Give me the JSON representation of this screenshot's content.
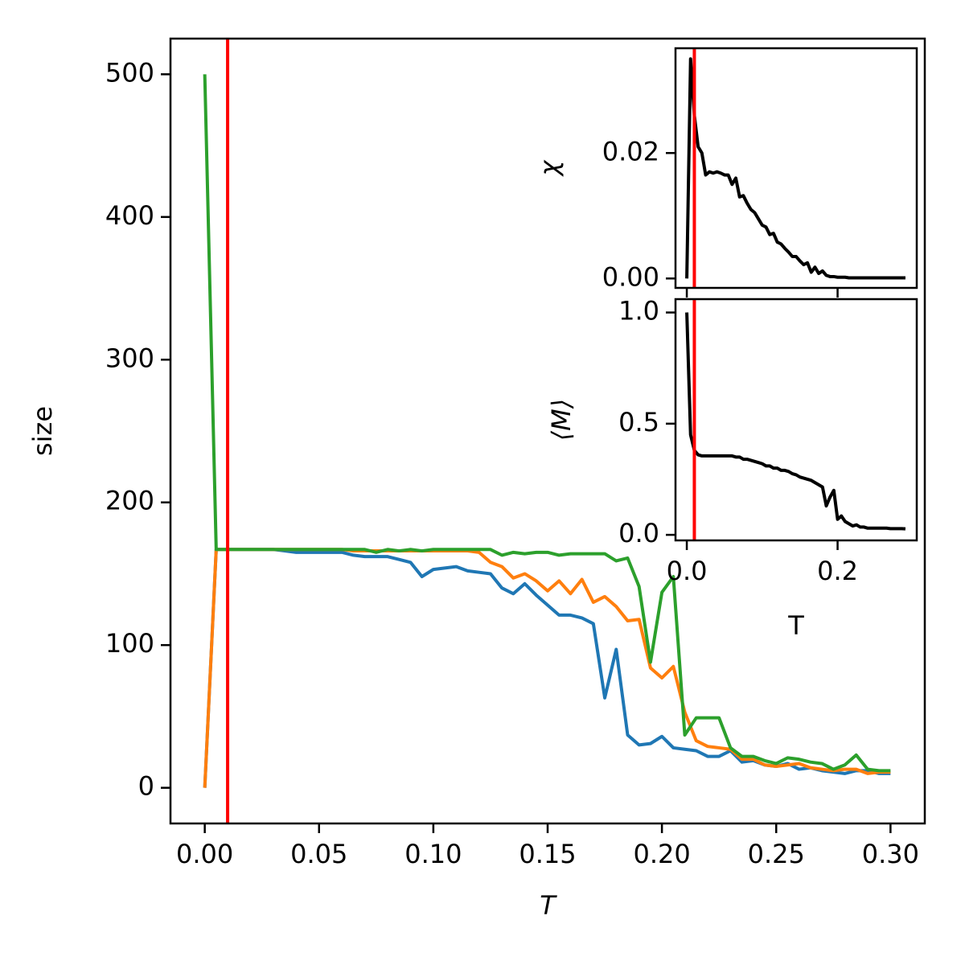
{
  "chart_data": [
    {
      "type": "line",
      "xlabel": "T",
      "ylabel": "size",
      "x": [
        0,
        0.005,
        0.01,
        0.015,
        0.02,
        0.025,
        0.03,
        0.035,
        0.04,
        0.045,
        0.05,
        0.055,
        0.06,
        0.065,
        0.07,
        0.075,
        0.08,
        0.085,
        0.09,
        0.095,
        0.1,
        0.105,
        0.11,
        0.115,
        0.12,
        0.125,
        0.13,
        0.135,
        0.14,
        0.145,
        0.15,
        0.155,
        0.16,
        0.165,
        0.17,
        0.175,
        0.18,
        0.185,
        0.19,
        0.195,
        0.2,
        0.205,
        0.21,
        0.215,
        0.22,
        0.225,
        0.23,
        0.235,
        0.24,
        0.245,
        0.25,
        0.255,
        0.26,
        0.265,
        0.27,
        0.275,
        0.28,
        0.285,
        0.29,
        0.295,
        0.3
      ],
      "series": [
        {
          "color": "#1f77b4",
          "values": [
            0,
            167,
            167,
            167,
            167,
            167,
            167,
            166,
            165,
            165,
            165,
            165,
            165,
            163,
            162,
            162,
            162,
            160,
            158,
            148,
            153,
            154,
            155,
            152,
            151,
            150,
            140,
            136,
            143,
            135,
            128,
            121,
            121,
            119,
            115,
            63,
            97,
            37,
            30,
            31,
            36,
            28,
            27,
            26,
            22,
            22,
            26,
            18,
            19,
            16,
            15,
            17,
            13,
            14,
            12,
            11,
            10,
            12,
            12,
            10,
            10
          ]
        },
        {
          "color": "#ff7f0e",
          "values": [
            0,
            167,
            167,
            167,
            167,
            167,
            167,
            167,
            167,
            167,
            167,
            167,
            167,
            166,
            166,
            166,
            166,
            166,
            166,
            166,
            166,
            166,
            166,
            166,
            165,
            158,
            155,
            147,
            150,
            145,
            138,
            145,
            136,
            146,
            130,
            134,
            127,
            117,
            118,
            84,
            77,
            85,
            53,
            33,
            29,
            28,
            27,
            20,
            20,
            16,
            15,
            16,
            17,
            14,
            13,
            12,
            13,
            13,
            10,
            11,
            11
          ]
        },
        {
          "color": "#2ca02c",
          "values": [
            500,
            167,
            167,
            167,
            167,
            167,
            167,
            167,
            167,
            167,
            167,
            167,
            167,
            167,
            167,
            165,
            167,
            166,
            167,
            166,
            167,
            167,
            167,
            167,
            167,
            167,
            163,
            165,
            164,
            165,
            165,
            163,
            164,
            164,
            164,
            164,
            159,
            161,
            141,
            88,
            137,
            148,
            37,
            49,
            49,
            49,
            28,
            22,
            22,
            19,
            17,
            21,
            20,
            18,
            17,
            13,
            16,
            23,
            13,
            12,
            12
          ]
        }
      ],
      "vline": {
        "x": 0.01,
        "color": "#ff0000"
      },
      "xlim": [
        -0.015,
        0.315
      ],
      "ylim": [
        -25,
        525
      ],
      "xticks": [
        {
          "value": 0,
          "label": "0.00"
        },
        {
          "value": 0.05,
          "label": "0.05"
        },
        {
          "value": 0.1,
          "label": "0.10"
        },
        {
          "value": 0.15,
          "label": "0.15"
        },
        {
          "value": 0.2,
          "label": "0.20"
        },
        {
          "value": 0.25,
          "label": "0.25"
        },
        {
          "value": 0.3,
          "label": "0.30"
        }
      ],
      "yticks": [
        0,
        100,
        200,
        300,
        400,
        500
      ]
    },
    {
      "type": "line",
      "ylabel": "χ",
      "x": [
        0,
        0.005,
        0.01,
        0.015,
        0.02,
        0.025,
        0.03,
        0.035,
        0.04,
        0.045,
        0.05,
        0.055,
        0.06,
        0.065,
        0.07,
        0.075,
        0.08,
        0.085,
        0.09,
        0.095,
        0.1,
        0.105,
        0.11,
        0.115,
        0.12,
        0.125,
        0.13,
        0.135,
        0.14,
        0.145,
        0.15,
        0.155,
        0.16,
        0.165,
        0.17,
        0.175,
        0.18,
        0.185,
        0.19,
        0.195,
        0.2,
        0.205,
        0.21,
        0.215,
        0.22,
        0.225,
        0.23,
        0.235,
        0.24,
        0.245,
        0.25,
        0.255,
        0.26,
        0.265,
        0.27,
        0.275,
        0.28,
        0.285,
        0.29
      ],
      "series": [
        {
          "color": "#000000",
          "values": [
            0,
            0.035,
            0.026,
            0.021,
            0.02,
            0.0165,
            0.017,
            0.0168,
            0.017,
            0.0168,
            0.0165,
            0.0165,
            0.015,
            0.016,
            0.013,
            0.0132,
            0.012,
            0.011,
            0.0105,
            0.0095,
            0.0085,
            0.0082,
            0.007,
            0.0072,
            0.0058,
            0.0055,
            0.0048,
            0.0042,
            0.0035,
            0.0035,
            0.0028,
            0.0022,
            0.0025,
            0.001,
            0.0018,
            0.0008,
            0.0012,
            0.0005,
            0.0003,
            0.0003,
            0.0002,
            0.0002,
            0.0002,
            0.0001,
            0.0001,
            0.0001,
            0.0001,
            0.0001,
            0.0001,
            0.0001,
            0.0001,
            0.0001,
            0.0001,
            0.0001,
            0.0001,
            0.0001,
            0.0001,
            0.0001,
            0.0001
          ]
        }
      ],
      "vline": {
        "x": 0.01,
        "color": "#ff0000"
      },
      "xlim": [
        -0.015,
        0.305
      ],
      "ylim": [
        -0.0015,
        0.0367
      ],
      "xticks": [
        0,
        0.2
      ],
      "show_xticklabels": false,
      "yticks": [
        {
          "value": 0,
          "label": "0.00"
        },
        {
          "value": 0.02,
          "label": "0.02"
        }
      ]
    },
    {
      "type": "line",
      "xlabel": "T",
      "ylabel": "⟨M⟩",
      "x": [
        0,
        0.005,
        0.01,
        0.015,
        0.02,
        0.025,
        0.03,
        0.035,
        0.04,
        0.045,
        0.05,
        0.055,
        0.06,
        0.065,
        0.07,
        0.075,
        0.08,
        0.085,
        0.09,
        0.095,
        0.1,
        0.105,
        0.11,
        0.115,
        0.12,
        0.125,
        0.13,
        0.135,
        0.14,
        0.145,
        0.15,
        0.155,
        0.16,
        0.165,
        0.17,
        0.175,
        0.18,
        0.185,
        0.19,
        0.195,
        0.2,
        0.205,
        0.21,
        0.215,
        0.22,
        0.225,
        0.23,
        0.235,
        0.24,
        0.245,
        0.25,
        0.255,
        0.26,
        0.265,
        0.27,
        0.275,
        0.28,
        0.285,
        0.29
      ],
      "series": [
        {
          "color": "#000000",
          "values": [
            1,
            0.45,
            0.38,
            0.36,
            0.355,
            0.355,
            0.355,
            0.355,
            0.355,
            0.355,
            0.355,
            0.355,
            0.355,
            0.35,
            0.35,
            0.34,
            0.34,
            0.335,
            0.33,
            0.325,
            0.32,
            0.31,
            0.31,
            0.3,
            0.3,
            0.29,
            0.29,
            0.285,
            0.275,
            0.27,
            0.26,
            0.255,
            0.25,
            0.245,
            0.235,
            0.225,
            0.215,
            0.13,
            0.17,
            0.2,
            0.07,
            0.085,
            0.06,
            0.05,
            0.04,
            0.045,
            0.035,
            0.035,
            0.03,
            0.03,
            0.03,
            0.03,
            0.03,
            0.03,
            0.028,
            0.028,
            0.028,
            0.028,
            0.027
          ]
        }
      ],
      "vline": {
        "x": 0.01,
        "color": "#ff0000"
      },
      "xlim": [
        -0.015,
        0.305
      ],
      "ylim": [
        -0.025,
        1.06
      ],
      "xticks": [
        {
          "value": 0,
          "label": "0.0"
        },
        {
          "value": 0.2,
          "label": "0.2"
        }
      ],
      "yticks": [
        {
          "value": 0,
          "label": "0.0"
        },
        {
          "value": 0.5,
          "label": "0.5"
        },
        {
          "value": 1,
          "label": "1.0"
        }
      ]
    }
  ]
}
